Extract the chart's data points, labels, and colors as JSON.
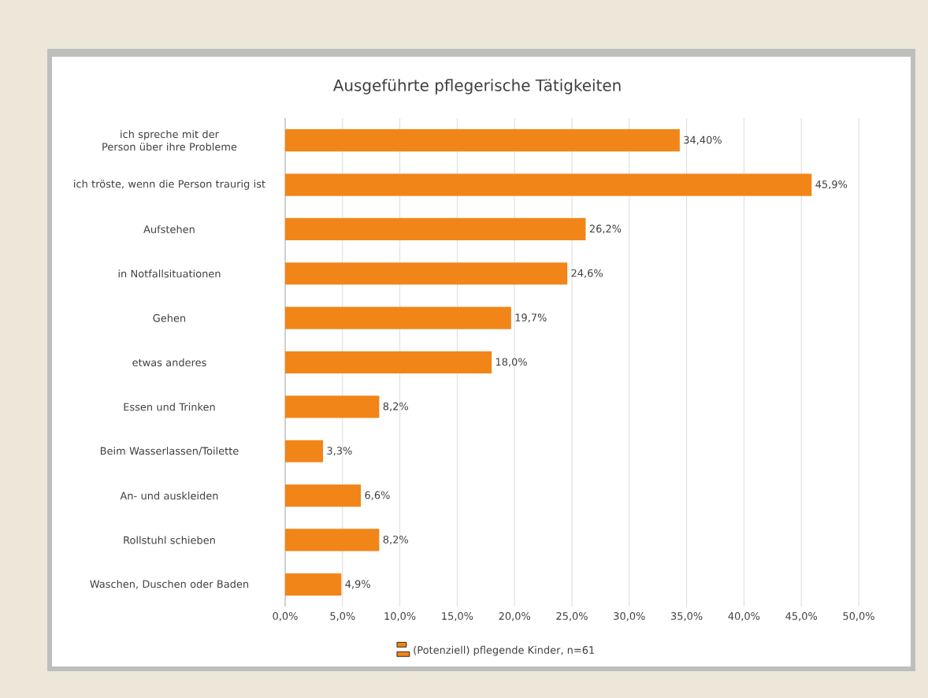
{
  "chart_data": {
    "type": "bar",
    "orientation": "horizontal",
    "title": "Ausgeführte pflegerische Tätigkeiten",
    "categories": [
      "ich spreche mit der Person über ihre Probleme",
      "ich tröste, wenn die Person traurig ist",
      "Aufstehen",
      "in Notfallsituationen",
      "Gehen",
      "etwas anderes",
      "Essen und Trinken",
      "Beim Wasserlassen/Toilette",
      "An- und auskleiden",
      "Rollstuhl schieben",
      "Waschen, Duschen oder Baden"
    ],
    "series": [
      {
        "name": "(Potenziell) pflegende Kinder, n=61",
        "color": "#f28518",
        "values": [
          34.4,
          45.9,
          26.2,
          24.6,
          19.7,
          18.0,
          8.2,
          3.3,
          6.6,
          8.2,
          4.9
        ],
        "value_labels": [
          "34,40%",
          "45,9%",
          "26,2%",
          "24,6%",
          "19,7%",
          "18,0%",
          "8,2%",
          "3,3%",
          "6,6%",
          "8,2%",
          "4,9%"
        ]
      }
    ],
    "xlim": [
      0,
      50
    ],
    "xticks": [
      {
        "value": 0,
        "label": "0,0%"
      },
      {
        "value": 5,
        "label": "5,0%"
      },
      {
        "value": 10,
        "label": "10,0%"
      },
      {
        "value": 15,
        "label": "15,0%"
      },
      {
        "value": 20,
        "label": "20,0%"
      },
      {
        "value": 25,
        "label": "25,0%"
      },
      {
        "value": 30,
        "label": "30,0%"
      },
      {
        "value": 35,
        "label": "35,0%"
      },
      {
        "value": 40,
        "label": "40,0%"
      },
      {
        "value": 45,
        "label": "45,0%"
      },
      {
        "value": 50,
        "label": "50,0%"
      }
    ],
    "grid": "x",
    "legend": "bottom"
  }
}
